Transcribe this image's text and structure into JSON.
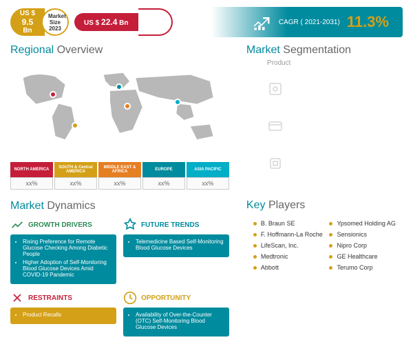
{
  "top": {
    "market_2023": {
      "prefix": "US $",
      "value": "9.5",
      "unit": "Bn",
      "label": "Market Size",
      "year": "2023",
      "color": "#d4a017"
    },
    "market_2031": {
      "prefix": "US $",
      "value": "22.4",
      "unit": "Bn",
      "color": "#c41e3a"
    },
    "cagr": {
      "label": "CAGR ( 2021-2031)",
      "value": "11.3%",
      "bg": "#008b9e",
      "value_color": "#d4a017"
    }
  },
  "regional": {
    "title_highlight": "Regional",
    "title_rest": "Overview",
    "regions": [
      {
        "name": "NORTH AMERICA",
        "val": "xx%",
        "color": "#c41e3a"
      },
      {
        "name": "SOUTH & Central AMERICA",
        "val": "xx%",
        "color": "#d4a017"
      },
      {
        "name": "MIDDLE EAST & AFRICA",
        "val": "xx%",
        "color": "#e67e22"
      },
      {
        "name": "EUROPE",
        "val": "xx%",
        "color": "#008b9e"
      },
      {
        "name": "ASIA PACIFIC",
        "val": "xx%",
        "color": "#00aec7"
      }
    ],
    "markers": [
      {
        "x": 18,
        "y": 30,
        "color": "#c41e3a"
      },
      {
        "x": 28,
        "y": 62,
        "color": "#d4a017"
      },
      {
        "x": 52,
        "y": 42,
        "color": "#e67e22"
      },
      {
        "x": 48,
        "y": 22,
        "color": "#008b9e"
      },
      {
        "x": 75,
        "y": 38,
        "color": "#00aec7"
      }
    ]
  },
  "dynamics": {
    "title_highlight": "Market",
    "title_rest": "Dynamics",
    "blocks": [
      {
        "title": "GROWTH DRIVERS",
        "title_color": "#2e8b57",
        "bg": "#008b9e",
        "items": [
          "Rising Preference for Remote Glucose Checking Among Diabetic People",
          "Higher Adoption of Self-Monitoring Blood Glucose Devices Amid COVID-19 Pandemic"
        ]
      },
      {
        "title": "FUTURE TRENDS",
        "title_color": "#008b9e",
        "bg": "#008b9e",
        "items": [
          "Telemedicine Based Self-Monitoring Blood Glucose Devices"
        ]
      },
      {
        "title": "RESTRAINTS",
        "title_color": "#c41e3a",
        "bg": "#d4a017",
        "items": [
          "Product Recalls"
        ]
      },
      {
        "title": "OPPORTUNITY",
        "title_color": "#d4a017",
        "bg": "#008b9e",
        "items": [
          "Availability of Over-the-Counter (OTC) Self-Monitoring Blood Glucose Devices"
        ]
      }
    ]
  },
  "segmentation": {
    "title_highlight": "Market",
    "title_rest": "Segmentation",
    "sub": "Product"
  },
  "players": {
    "title_highlight": "Key",
    "title_rest": "Players",
    "list_left": [
      "B. Braun SE",
      "F. Hoffmann-La Roche",
      "LifeScan, Inc.",
      "Medtronic",
      "Abbott"
    ],
    "list_right": [
      "Ypsomed Holding AG",
      "Sensionics",
      "Nipro Corp",
      "GE Healthcare",
      "Terumo Corp"
    ]
  },
  "colors": {
    "teal": "#008b9e",
    "gold": "#d4a017",
    "red": "#c41e3a",
    "orange": "#e67e22",
    "green": "#2e8b57",
    "map": "#b8b8b8"
  }
}
